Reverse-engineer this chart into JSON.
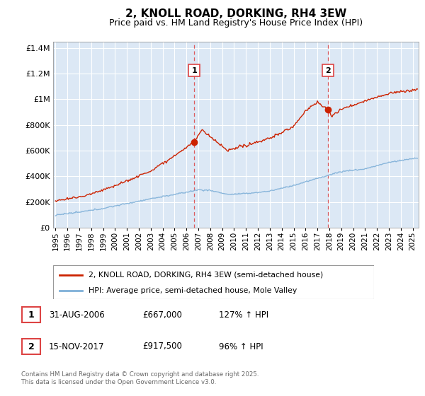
{
  "title": "2, KNOLL ROAD, DORKING, RH4 3EW",
  "subtitle": "Price paid vs. HM Land Registry's House Price Index (HPI)",
  "ylabel_ticks": [
    "£0",
    "£200K",
    "£400K",
    "£600K",
    "£800K",
    "£1M",
    "£1.2M",
    "£1.4M"
  ],
  "ytick_vals": [
    0,
    200000,
    400000,
    600000,
    800000,
    1000000,
    1200000,
    1400000
  ],
  "ylim": [
    0,
    1450000
  ],
  "xlim_start": 1994.8,
  "xlim_end": 2025.5,
  "bg_color": "#dce8f5",
  "fig_color": "#ffffff",
  "red_color": "#cc2200",
  "blue_color": "#7fb0d8",
  "grid_color": "#ffffff",
  "vline_color": "#dd4444",
  "transaction1_x": 2006.65,
  "transaction1_y": 667000,
  "transaction1_label": "1",
  "transaction1_date": "31-AUG-2006",
  "transaction1_price": "£667,000",
  "transaction1_hpi": "127% ↑ HPI",
  "transaction2_x": 2017.87,
  "transaction2_y": 917500,
  "transaction2_label": "2",
  "transaction2_date": "15-NOV-2017",
  "transaction2_price": "£917,500",
  "transaction2_hpi": "96% ↑ HPI",
  "legend_line1": "2, KNOLL ROAD, DORKING, RH4 3EW (semi-detached house)",
  "legend_line2": "HPI: Average price, semi-detached house, Mole Valley",
  "footer": "Contains HM Land Registry data © Crown copyright and database right 2025.\nThis data is licensed under the Open Government Licence v3.0."
}
